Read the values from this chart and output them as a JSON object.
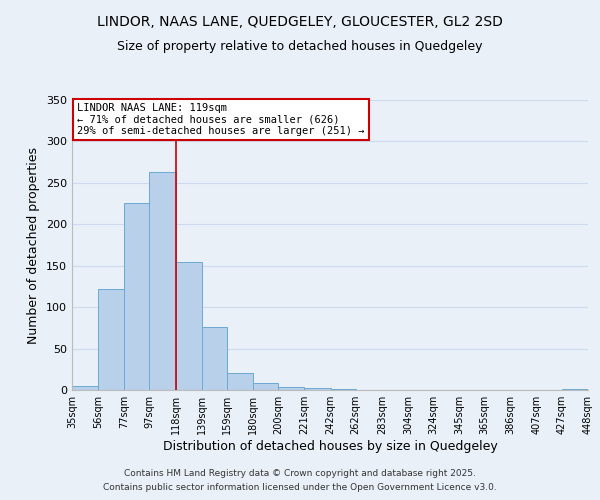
{
  "title_line1": "LINDOR, NAAS LANE, QUEDGELEY, GLOUCESTER, GL2 2SD",
  "title_line2": "Size of property relative to detached houses in Quedgeley",
  "xlabel": "Distribution of detached houses by size in Quedgeley",
  "ylabel": "Number of detached properties",
  "bar_edges": [
    35,
    56,
    77,
    97,
    118,
    139,
    159,
    180,
    200,
    221,
    242,
    262,
    283,
    304,
    324,
    345,
    365,
    386,
    407,
    427,
    448
  ],
  "bar_heights": [
    5,
    122,
    226,
    263,
    155,
    76,
    20,
    9,
    4,
    3,
    1,
    0,
    0,
    0,
    0,
    0,
    0,
    0,
    0,
    1
  ],
  "bar_color": "#b8d0ea",
  "bar_edge_color": "#6aaad4",
  "grid_color": "#cddaee",
  "bg_color": "#eaf0f8",
  "reference_line_x": 118,
  "reference_line_color": "#cc0000",
  "annotation_title": "LINDOR NAAS LANE: 119sqm",
  "annotation_line1": "← 71% of detached houses are smaller (626)",
  "annotation_line2": "29% of semi-detached houses are larger (251) →",
  "annotation_box_facecolor": "#ffffff",
  "annotation_box_edgecolor": "#cc0000",
  "ylim": [
    0,
    350
  ],
  "tick_labels": [
    "35sqm",
    "56sqm",
    "77sqm",
    "97sqm",
    "118sqm",
    "139sqm",
    "159sqm",
    "180sqm",
    "200sqm",
    "221sqm",
    "242sqm",
    "262sqm",
    "283sqm",
    "304sqm",
    "324sqm",
    "345sqm",
    "365sqm",
    "386sqm",
    "407sqm",
    "427sqm",
    "448sqm"
  ],
  "footer_line1": "Contains HM Land Registry data © Crown copyright and database right 2025.",
  "footer_line2": "Contains public sector information licensed under the Open Government Licence v3.0.",
  "title_fontsize": 10,
  "subtitle_fontsize": 9,
  "tick_fontsize": 7,
  "axis_label_fontsize": 9,
  "footer_fontsize": 6.5
}
